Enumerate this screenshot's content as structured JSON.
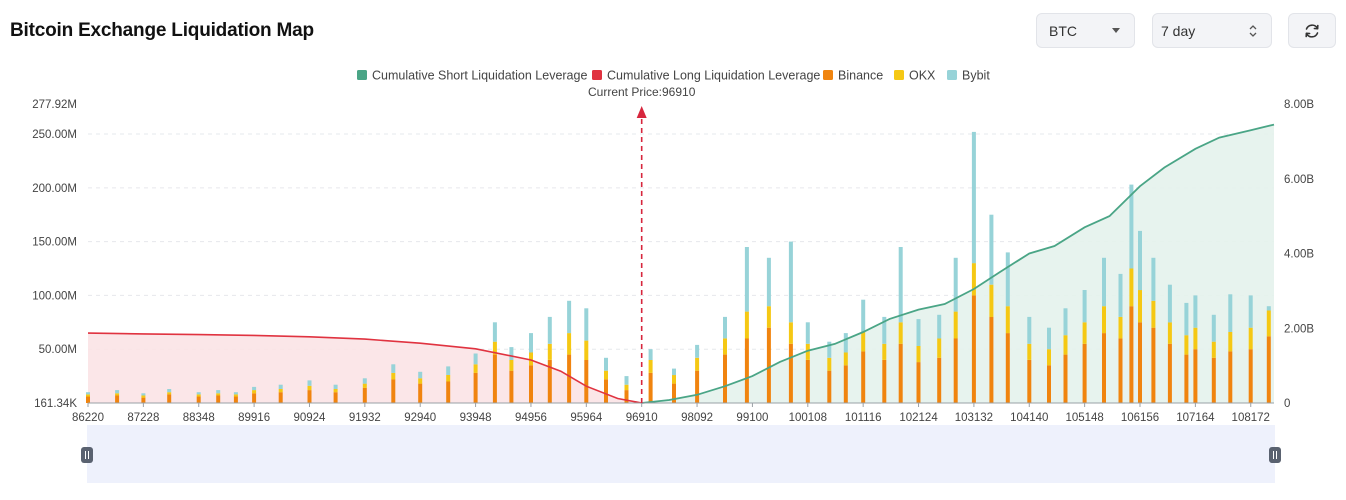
{
  "header": {
    "title": "Bitcoin Exchange Liquidation Map",
    "coin_select": "BTC",
    "range_select": "7 day"
  },
  "icons": {
    "dropdown": "chevron-down-icon",
    "stepper": "up-down-icon",
    "refresh": "refresh-icon"
  },
  "chart_data": {
    "type": "bar",
    "legend": [
      {
        "name": "Cumulative Short Liquidation Leverage",
        "color": "#4aa586"
      },
      {
        "name": "Cumulative Long Liquidation Leverage",
        "color": "#e03340"
      },
      {
        "name": "Binance",
        "color": "#f0840f"
      },
      {
        "name": "OKX",
        "color": "#f5c814"
      },
      {
        "name": "Bybit",
        "color": "#97d3d8"
      }
    ],
    "legend_position": "top-center",
    "current_price": 96910,
    "current_price_label": "Current Price:96910",
    "x_tick_labels": [
      "86220",
      "87228",
      "88348",
      "89916",
      "90924",
      "91932",
      "92940",
      "93948",
      "94956",
      "95964",
      "96910",
      "98092",
      "99100",
      "100108",
      "101116",
      "102124",
      "103132",
      "104140",
      "105148",
      "106156",
      "107164",
      "108172"
    ],
    "x_range": [
      86220,
      108600
    ],
    "y_left_ticks": [
      "161.34K",
      "50.00M",
      "100.00M",
      "150.00M",
      "200.00M",
      "250.00M",
      "277.92M"
    ],
    "y_left_range": [
      0,
      277.92
    ],
    "y_left_unit": "M",
    "y_right_ticks": [
      "0",
      "2.00B",
      "4.00B",
      "6.00B",
      "8.00B"
    ],
    "y_right_range": [
      0,
      8
    ],
    "y_right_unit": "B",
    "grid": true,
    "long_cumulative_B": [
      [
        86220,
        1.87
      ],
      [
        87228,
        1.85
      ],
      [
        88348,
        1.83
      ],
      [
        89916,
        1.81
      ],
      [
        90924,
        1.77
      ],
      [
        91932,
        1.71
      ],
      [
        92940,
        1.6
      ],
      [
        93948,
        1.45
      ],
      [
        94956,
        1.15
      ],
      [
        95500,
        0.85
      ],
      [
        95964,
        0.45
      ],
      [
        96500,
        0.12
      ],
      [
        96910,
        0.0
      ]
    ],
    "short_cumulative_B": [
      [
        96910,
        0.0
      ],
      [
        97500,
        0.08
      ],
      [
        98092,
        0.22
      ],
      [
        98600,
        0.45
      ],
      [
        99100,
        0.72
      ],
      [
        99600,
        1.1
      ],
      [
        100108,
        1.4
      ],
      [
        100600,
        1.58
      ],
      [
        101116,
        1.9
      ],
      [
        101600,
        2.25
      ],
      [
        102124,
        2.5
      ],
      [
        102600,
        2.65
      ],
      [
        103132,
        3.05
      ],
      [
        103600,
        3.5
      ],
      [
        104140,
        4.0
      ],
      [
        104600,
        4.2
      ],
      [
        105148,
        4.7
      ],
      [
        105600,
        5.0
      ],
      [
        106156,
        5.8
      ],
      [
        106600,
        6.3
      ],
      [
        107164,
        6.8
      ],
      [
        107600,
        7.1
      ],
      [
        108172,
        7.3
      ],
      [
        108600,
        7.45
      ]
    ],
    "stacked_bars_M": [
      [
        86220,
        6,
        2,
        2
      ],
      [
        86750,
        7,
        2,
        3
      ],
      [
        87228,
        5,
        2,
        2
      ],
      [
        87750,
        8,
        2,
        3
      ],
      [
        88348,
        6,
        2,
        2
      ],
      [
        88900,
        7,
        2,
        3
      ],
      [
        89400,
        6,
        2,
        2
      ],
      [
        89916,
        9,
        3,
        3
      ],
      [
        90400,
        10,
        3,
        4
      ],
      [
        90924,
        12,
        4,
        5
      ],
      [
        91400,
        10,
        3,
        4
      ],
      [
        91932,
        14,
        4,
        5
      ],
      [
        92450,
        22,
        6,
        8
      ],
      [
        92940,
        18,
        5,
        6
      ],
      [
        93450,
        20,
        6,
        8
      ],
      [
        93948,
        28,
        8,
        10
      ],
      [
        94300,
        45,
        12,
        18
      ],
      [
        94600,
        30,
        10,
        12
      ],
      [
        94956,
        35,
        12,
        18
      ],
      [
        95300,
        40,
        15,
        25
      ],
      [
        95650,
        45,
        20,
        30
      ],
      [
        95964,
        40,
        18,
        30
      ],
      [
        96300,
        22,
        8,
        12
      ],
      [
        96650,
        12,
        5,
        8
      ],
      [
        97100,
        28,
        12,
        10
      ],
      [
        97600,
        18,
        8,
        6
      ],
      [
        98092,
        30,
        12,
        12
      ],
      [
        98600,
        45,
        15,
        20
      ],
      [
        99000,
        60,
        25,
        60
      ],
      [
        99400,
        70,
        20,
        45
      ],
      [
        99800,
        55,
        20,
        75
      ],
      [
        100108,
        40,
        15,
        20
      ],
      [
        100500,
        30,
        12,
        15
      ],
      [
        100800,
        35,
        12,
        18
      ],
      [
        101116,
        48,
        18,
        30
      ],
      [
        101500,
        40,
        15,
        25
      ],
      [
        101800,
        55,
        20,
        70
      ],
      [
        102124,
        38,
        15,
        25
      ],
      [
        102500,
        42,
        18,
        22
      ],
      [
        102800,
        60,
        25,
        50
      ],
      [
        103132,
        100,
        30,
        122
      ],
      [
        103450,
        80,
        30,
        65
      ],
      [
        103750,
        65,
        25,
        50
      ],
      [
        104140,
        40,
        15,
        25
      ],
      [
        104500,
        35,
        15,
        20
      ],
      [
        104800,
        45,
        18,
        25
      ],
      [
        105148,
        55,
        20,
        30
      ],
      [
        105500,
        65,
        25,
        45
      ],
      [
        105800,
        60,
        20,
        40
      ],
      [
        106000,
        90,
        35,
        78
      ],
      [
        106156,
        75,
        30,
        55
      ],
      [
        106400,
        70,
        25,
        40
      ],
      [
        106700,
        55,
        20,
        35
      ],
      [
        107000,
        45,
        18,
        30
      ],
      [
        107164,
        50,
        20,
        30
      ],
      [
        107500,
        42,
        15,
        25
      ],
      [
        107800,
        48,
        18,
        35
      ],
      [
        108172,
        50,
        20,
        30
      ],
      [
        108500,
        62,
        24,
        4
      ]
    ]
  }
}
